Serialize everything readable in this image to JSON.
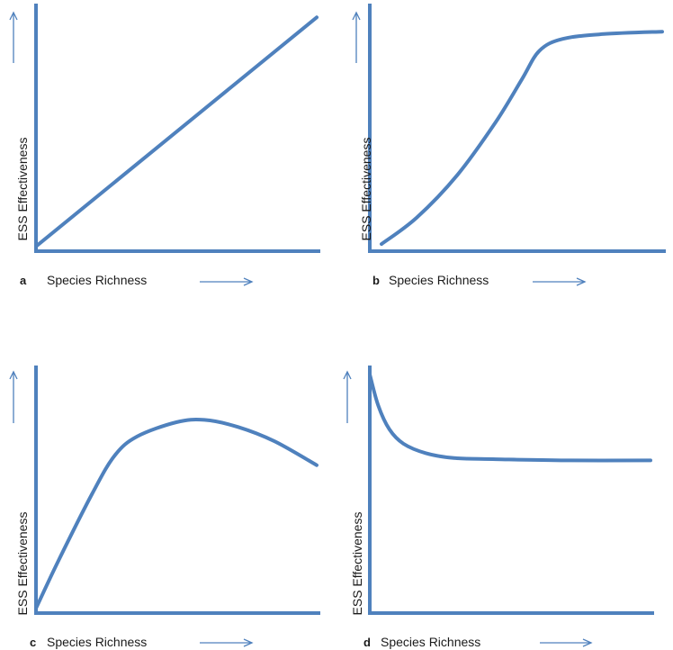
{
  "colors": {
    "line": "#4f81bd",
    "axis": "#4f81bd",
    "arrow": "#4f81bd",
    "text": "#1a1a1a"
  },
  "chart_data": [
    {
      "type": "line",
      "panel": "a",
      "xlabel": "Species Richness",
      "ylabel": "ESS Effectiveness",
      "x_ticks": "none",
      "y_ticks": "none",
      "grid": false,
      "xlim": [
        0,
        1
      ],
      "ylim": [
        0,
        1
      ],
      "series": [
        {
          "x": [
            0,
            1
          ],
          "y": [
            0.02,
            0.98
          ]
        }
      ]
    },
    {
      "type": "line",
      "panel": "b",
      "xlabel": "Species Richness",
      "ylabel": "ESS Effectiveness",
      "x_ticks": "none",
      "y_ticks": "none",
      "grid": false,
      "xlim": [
        0,
        1
      ],
      "ylim": [
        0,
        1
      ],
      "series": [
        {
          "x": [
            0.04,
            0.16,
            0.3,
            0.43,
            0.52,
            0.58,
            0.66,
            0.8,
            1.0
          ],
          "y": [
            0.03,
            0.14,
            0.32,
            0.54,
            0.72,
            0.84,
            0.89,
            0.91,
            0.92
          ]
        }
      ]
    },
    {
      "type": "line",
      "panel": "c",
      "xlabel": "Species Richness",
      "ylabel": "ESS Effectiveness",
      "x_ticks": "none",
      "y_ticks": "none",
      "grid": false,
      "xlim": [
        0,
        1
      ],
      "ylim": [
        0,
        1
      ],
      "series": [
        {
          "x": [
            0,
            0.08,
            0.2,
            0.28,
            0.36,
            0.5,
            0.6,
            0.72,
            0.85,
            1.0
          ],
          "y": [
            0.02,
            0.22,
            0.5,
            0.66,
            0.74,
            0.8,
            0.81,
            0.78,
            0.72,
            0.62
          ]
        }
      ]
    },
    {
      "type": "line",
      "panel": "d",
      "xlabel": "Species Richness",
      "ylabel": "ESS Effectiveness",
      "x_ticks": "none",
      "y_ticks": "none",
      "grid": false,
      "xlim": [
        0,
        1
      ],
      "ylim": [
        0,
        1
      ],
      "series": [
        {
          "x": [
            0,
            0.03,
            0.07,
            0.12,
            0.2,
            0.3,
            0.45,
            0.7,
            1.0
          ],
          "y": [
            1.0,
            0.87,
            0.77,
            0.71,
            0.67,
            0.65,
            0.645,
            0.64,
            0.64
          ]
        }
      ]
    }
  ]
}
